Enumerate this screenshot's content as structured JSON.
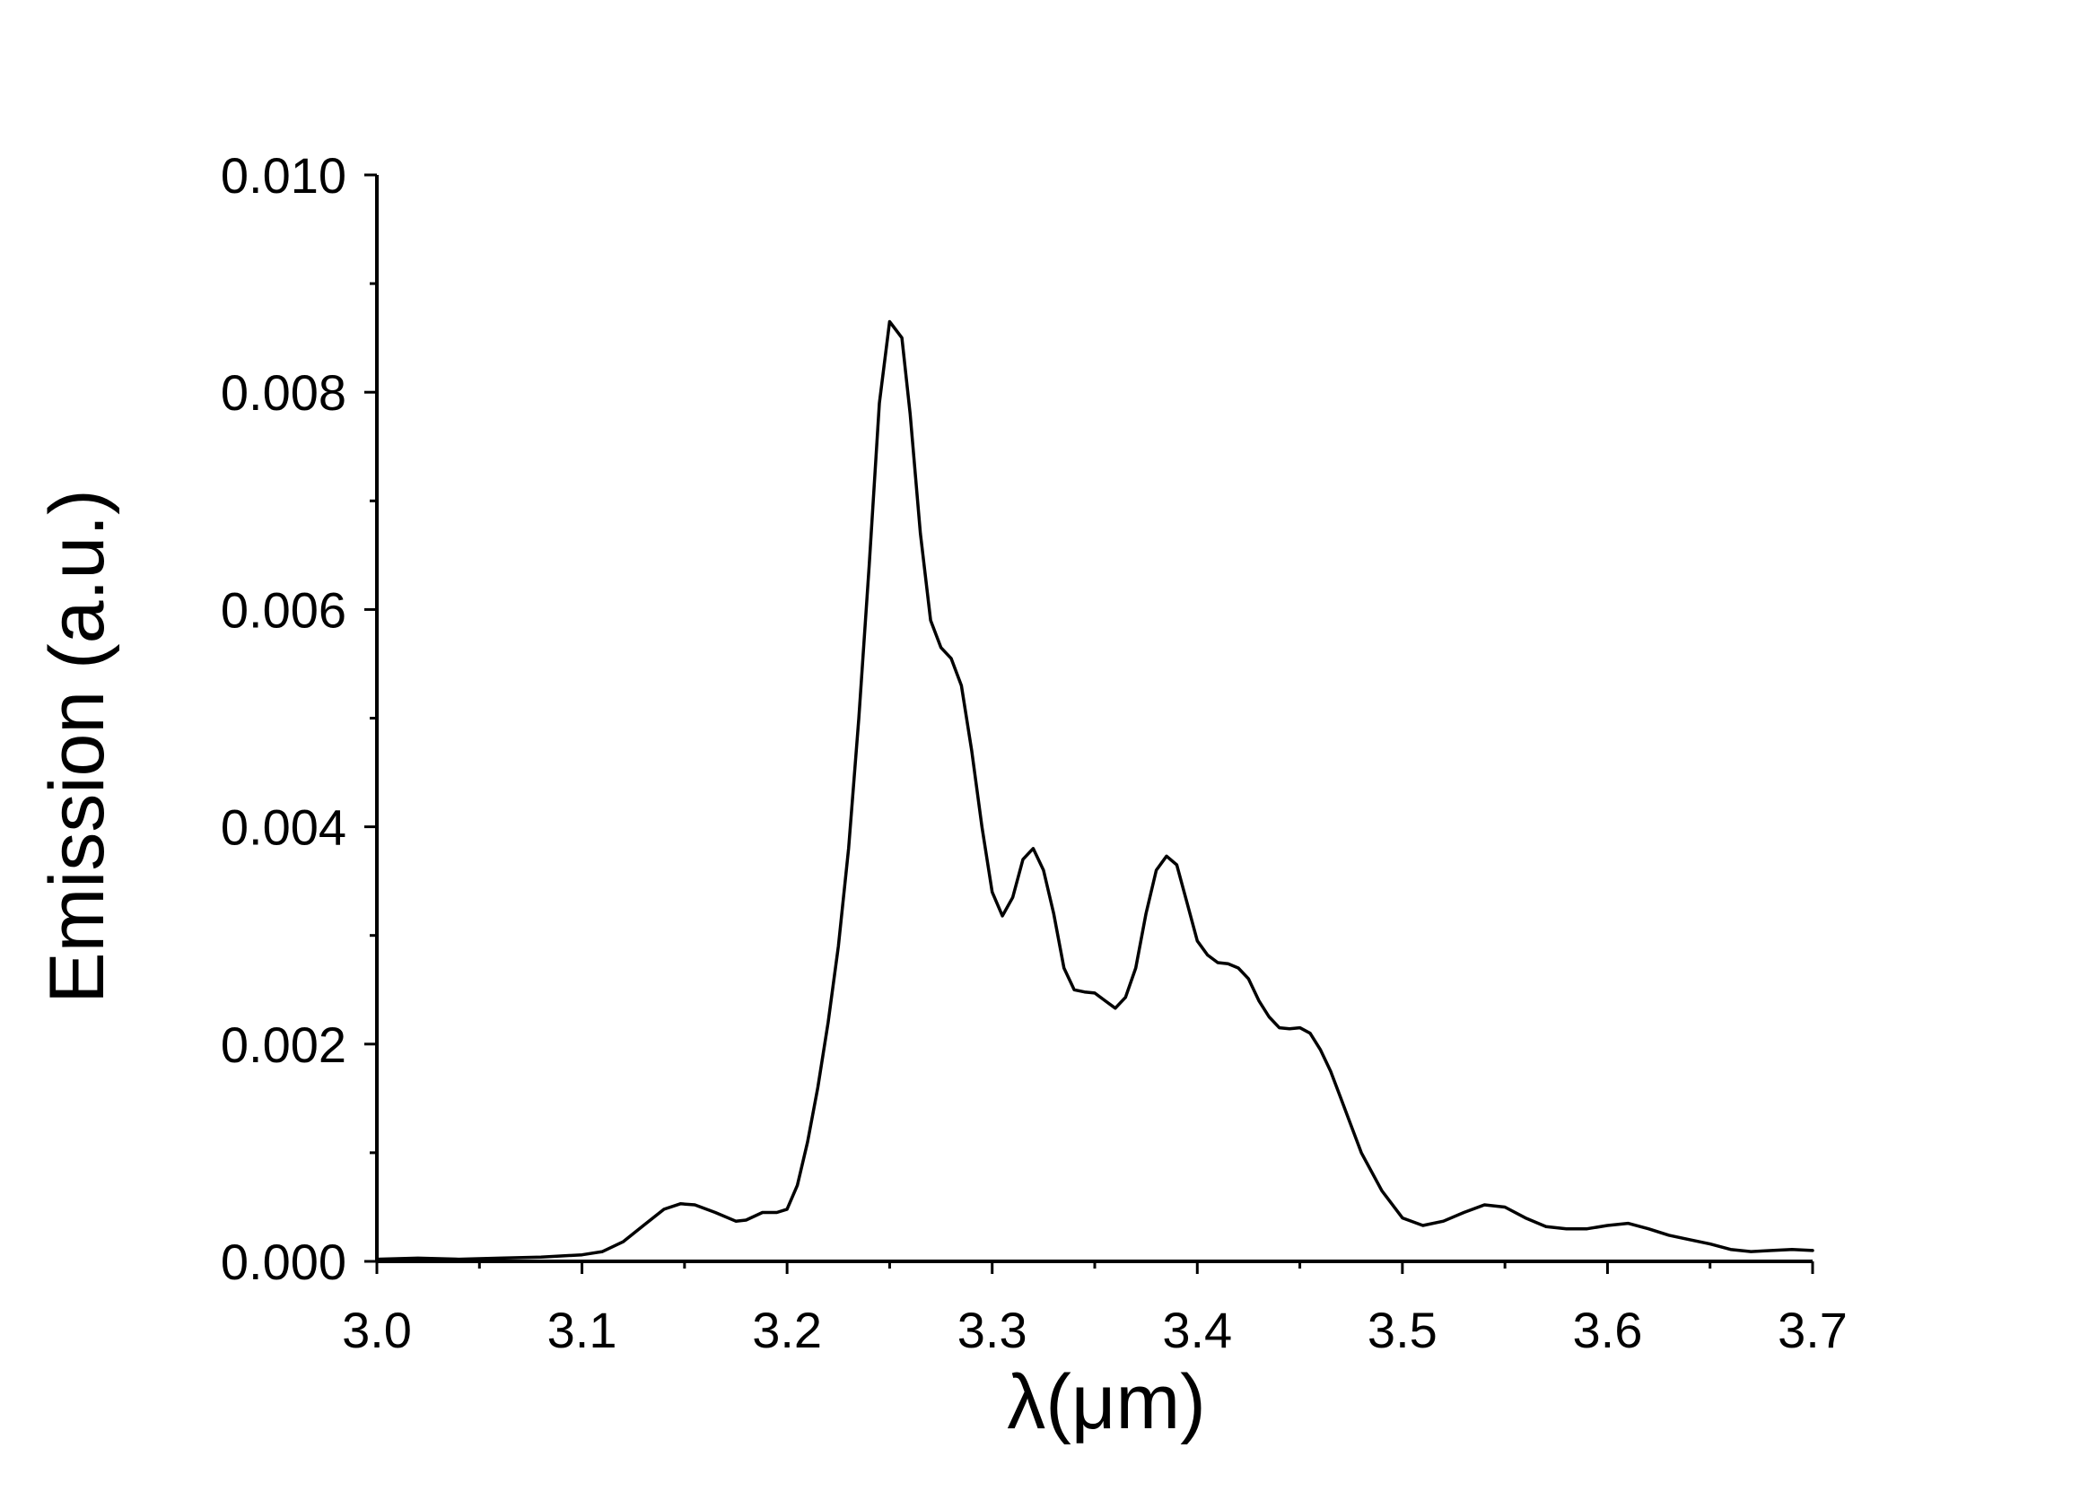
{
  "chart_data": {
    "type": "line",
    "title": "",
    "xlabel": "λ(μm)",
    "ylabel": "Emission (a.u.)",
    "xlim": [
      3.0,
      3.7
    ],
    "ylim": [
      0.0,
      0.01
    ],
    "x_major_ticks": [
      "3.0",
      "3.1",
      "3.2",
      "3.3",
      "3.4",
      "3.5",
      "3.6",
      "3.7"
    ],
    "y_major_ticks": [
      "0.000",
      "0.002",
      "0.004",
      "0.006",
      "0.008",
      "0.010"
    ],
    "grid": false,
    "legend": "none",
    "line_color": "#000000",
    "series": [
      {
        "x": [
          3.0,
          3.02,
          3.04,
          3.06,
          3.08,
          3.1,
          3.11,
          3.12,
          3.13,
          3.14,
          3.148,
          3.155,
          3.165,
          3.175,
          3.18,
          3.188,
          3.195,
          3.2,
          3.205,
          3.21,
          3.215,
          3.22,
          3.225,
          3.23,
          3.235,
          3.24,
          3.245,
          3.25,
          3.252,
          3.256,
          3.26,
          3.265,
          3.27,
          3.275,
          3.28,
          3.285,
          3.29,
          3.295,
          3.3,
          3.305,
          3.31,
          3.315,
          3.32,
          3.325,
          3.33,
          3.335,
          3.34,
          3.345,
          3.35,
          3.355,
          3.36,
          3.365,
          3.37,
          3.375,
          3.38,
          3.385,
          3.39,
          3.395,
          3.4,
          3.405,
          3.41,
          3.415,
          3.42,
          3.425,
          3.43,
          3.435,
          3.44,
          3.445,
          3.45,
          3.455,
          3.46,
          3.465,
          3.47,
          3.475,
          3.48,
          3.49,
          3.5,
          3.51,
          3.52,
          3.53,
          3.54,
          3.55,
          3.56,
          3.57,
          3.58,
          3.59,
          3.6,
          3.61,
          3.62,
          3.63,
          3.64,
          3.65,
          3.66,
          3.67,
          3.68,
          3.69,
          3.7
        ],
        "y": [
          2e-05,
          3e-05,
          2e-05,
          3e-05,
          4e-05,
          6e-05,
          9e-05,
          0.00018,
          0.00033,
          0.00048,
          0.00053,
          0.00052,
          0.00045,
          0.00037,
          0.00038,
          0.00045,
          0.00045,
          0.00048,
          0.0007,
          0.0011,
          0.0016,
          0.0022,
          0.0029,
          0.0038,
          0.005,
          0.0064,
          0.0079,
          0.00865,
          0.0086,
          0.0085,
          0.0078,
          0.0067,
          0.0059,
          0.00565,
          0.00555,
          0.0053,
          0.0047,
          0.004,
          0.0034,
          0.00318,
          0.00335,
          0.0037,
          0.0038,
          0.0036,
          0.0032,
          0.0027,
          0.0025,
          0.00248,
          0.00247,
          0.0024,
          0.00233,
          0.00243,
          0.0027,
          0.0032,
          0.0036,
          0.00373,
          0.00365,
          0.0033,
          0.00295,
          0.00282,
          0.00275,
          0.00274,
          0.0027,
          0.0026,
          0.0024,
          0.00225,
          0.00215,
          0.00214,
          0.00215,
          0.0021,
          0.00195,
          0.00175,
          0.0015,
          0.00125,
          0.001,
          0.00065,
          0.0004,
          0.00033,
          0.00037,
          0.00045,
          0.00052,
          0.0005,
          0.0004,
          0.00032,
          0.0003,
          0.0003,
          0.00033,
          0.00035,
          0.0003,
          0.00024,
          0.0002,
          0.00016,
          0.00011,
          9e-05,
          0.0001,
          0.00011,
          0.0001
        ]
      }
    ]
  }
}
